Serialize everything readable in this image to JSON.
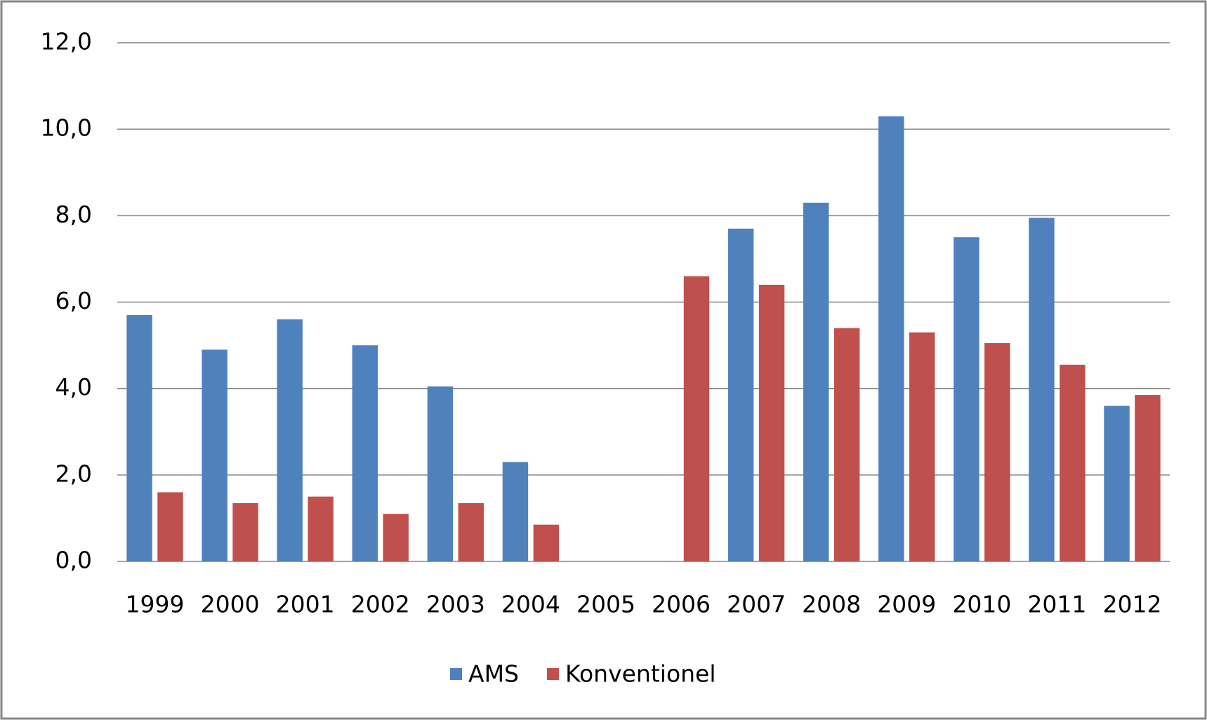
{
  "chart_data": {
    "type": "bar",
    "categories": [
      "1999",
      "2000",
      "2001",
      "2002",
      "2003",
      "2004",
      "2005",
      "2006",
      "2007",
      "2008",
      "2009",
      "2010",
      "2011",
      "2012"
    ],
    "series": [
      {
        "name": "AMS",
        "color": "#4f81bd",
        "values": [
          5.7,
          4.9,
          5.6,
          5.0,
          4.05,
          2.3,
          null,
          null,
          7.7,
          8.3,
          10.3,
          7.5,
          7.95,
          3.6
        ]
      },
      {
        "name": "Konventionel",
        "color": "#c0504d",
        "values": [
          1.6,
          1.35,
          1.5,
          1.1,
          1.35,
          0.85,
          null,
          6.6,
          6.4,
          5.4,
          5.3,
          5.05,
          4.55,
          3.85
        ]
      }
    ],
    "ylim": [
      0,
      12
    ],
    "yticks": [
      {
        "value": 0,
        "label": "0,0"
      },
      {
        "value": 2,
        "label": "2,0"
      },
      {
        "value": 4,
        "label": "4,0"
      },
      {
        "value": 6,
        "label": "6,0"
      },
      {
        "value": 8,
        "label": "8,0"
      },
      {
        "value": 10,
        "label": "10,0"
      },
      {
        "value": 12,
        "label": "12,0"
      }
    ],
    "grid": true,
    "legend": "bottom"
  }
}
